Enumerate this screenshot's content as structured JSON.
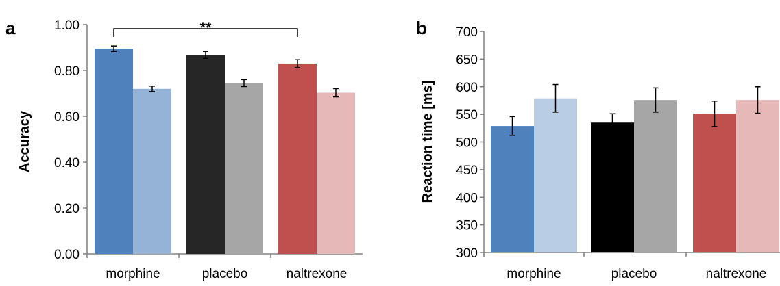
{
  "chart_data": [
    {
      "type": "bar",
      "panel_label": "a",
      "title": "",
      "xlabel": "",
      "ylabel": "Accuracy",
      "ylim": [
        0,
        1
      ],
      "yticks": [
        "0.00",
        "0.20",
        "0.40",
        "0.60",
        "0.80",
        "1.00"
      ],
      "ytick_values": [
        0,
        0.2,
        0.4,
        0.6,
        0.8,
        1.0
      ],
      "categories": [
        "morphine",
        "placebo",
        "naltrexone"
      ],
      "bars": [
        {
          "values": [
            0.895,
            0.72
          ],
          "errors": [
            0.012,
            0.012
          ],
          "colors": [
            "#4f81bd",
            "#95b3d7"
          ]
        },
        {
          "values": [
            0.868,
            0.745
          ],
          "errors": [
            0.015,
            0.015
          ],
          "colors": [
            "#262626",
            "#a6a6a6"
          ]
        },
        {
          "values": [
            0.83,
            0.703
          ],
          "errors": [
            0.017,
            0.018
          ],
          "colors": [
            "#c0504d",
            "#e6b8b7"
          ]
        }
      ],
      "significance": {
        "label": "**",
        "from_category": 0,
        "to_category": 2
      }
    },
    {
      "type": "bar",
      "panel_label": "b",
      "title": "",
      "xlabel": "",
      "ylabel": "Reaction time  [ms]",
      "ylim": [
        300,
        700
      ],
      "yticks": [
        "300",
        "350",
        "400",
        "450",
        "500",
        "550",
        "600",
        "650",
        "700"
      ],
      "ytick_values": [
        300,
        350,
        400,
        450,
        500,
        550,
        600,
        650,
        700
      ],
      "categories": [
        "morphine",
        "placebo",
        "naltrexone"
      ],
      "bars": [
        {
          "values": [
            529,
            579
          ],
          "errors": [
            17,
            25
          ],
          "colors": [
            "#4f81bd",
            "#b9cde5"
          ]
        },
        {
          "values": [
            535,
            576
          ],
          "errors": [
            16,
            22
          ],
          "colors": [
            "#000000",
            "#a6a6a6"
          ]
        },
        {
          "values": [
            551,
            576
          ],
          "errors": [
            23,
            24
          ],
          "colors": [
            "#c0504d",
            "#e6b8b7"
          ]
        }
      ]
    }
  ]
}
